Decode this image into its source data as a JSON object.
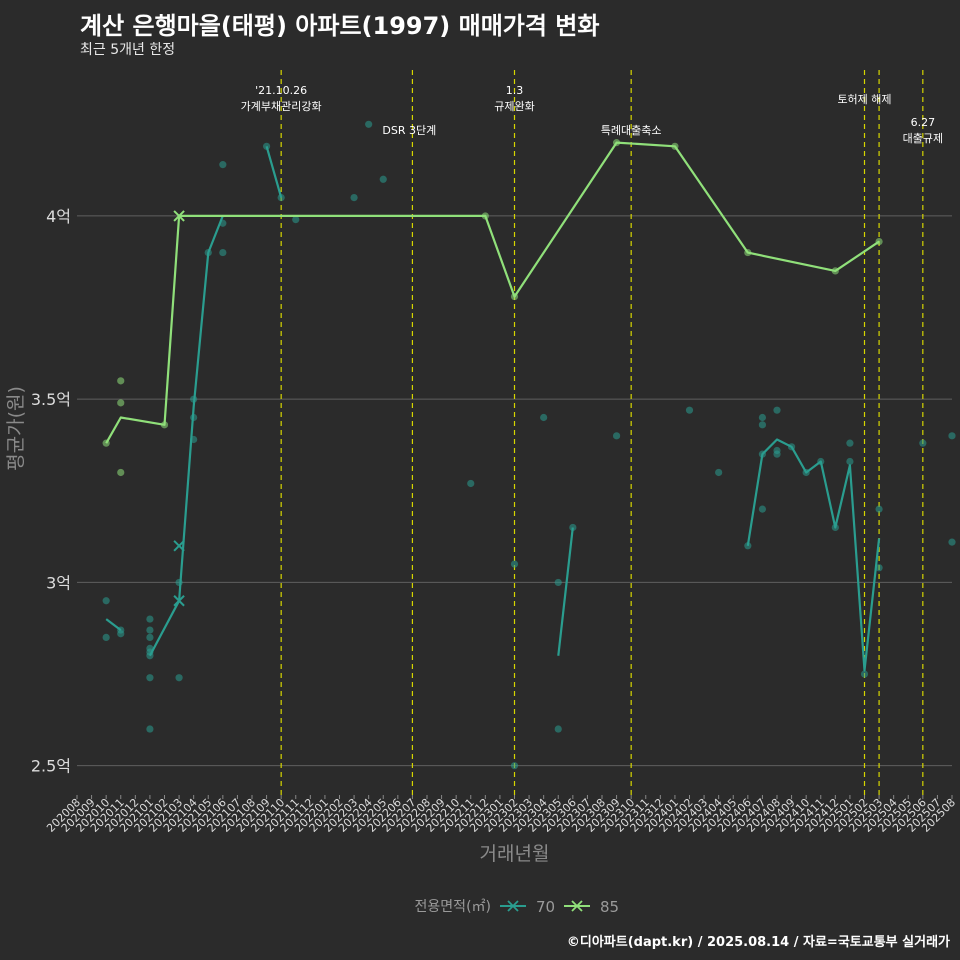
{
  "title": "계산 은행마을(태평) 아파트(1997) 매매가격 변화",
  "subtitle": "최근 5개년 한정",
  "caption": "©디아파트(dapt.kr) / 2025.08.14 / 자료=국토교통부 실거래가",
  "chart_data": {
    "type": "line",
    "xlabel": "거래년월",
    "ylabel": "평균가(원)",
    "x_categories": [
      "202008",
      "202009",
      "202010",
      "202011",
      "202012",
      "202101",
      "202102",
      "202103",
      "202104",
      "202105",
      "202106",
      "202107",
      "202108",
      "202109",
      "202110",
      "202111",
      "202112",
      "202201",
      "202202",
      "202203",
      "202204",
      "202205",
      "202206",
      "202207",
      "202208",
      "202209",
      "202210",
      "202211",
      "202212",
      "202301",
      "202302",
      "202303",
      "202304",
      "202305",
      "202306",
      "202307",
      "202308",
      "202309",
      "202310",
      "202311",
      "202312",
      "202401",
      "202402",
      "202403",
      "202404",
      "202405",
      "202406",
      "202407",
      "202408",
      "202409",
      "202410",
      "202411",
      "202412",
      "202501",
      "202502",
      "202503",
      "202504",
      "202505",
      "202506",
      "202507",
      "202508"
    ],
    "y_ticks": [
      {
        "value": 2.5,
        "label": "2.5억"
      },
      {
        "value": 3.0,
        "label": "3억"
      },
      {
        "value": 3.5,
        "label": "3.5억"
      },
      {
        "value": 4.0,
        "label": "4억"
      }
    ],
    "ylim": [
      2.42,
      4.42
    ],
    "grid": true,
    "legend": {
      "title": "전용면적(㎡)",
      "position": "bottom"
    },
    "series": [
      {
        "name": "70",
        "color": "#2a9d8f",
        "line_segments": [
          [
            [
              "202010",
              2.9
            ],
            [
              "202011",
              2.87
            ]
          ],
          [
            [
              "202101",
              2.8
            ],
            [
              "202103",
              2.95
            ],
            [
              "202104",
              3.48
            ],
            [
              "202105",
              3.9
            ],
            [
              "202106",
              4.0
            ]
          ],
          [
            [
              "202109",
              4.19
            ],
            [
              "202110",
              4.05
            ]
          ],
          [
            [
              "202305",
              2.8
            ],
            [
              "202306",
              3.15
            ]
          ],
          [
            [
              "202406",
              3.1
            ],
            [
              "202407",
              3.35
            ],
            [
              "202408",
              3.39
            ],
            [
              "202409",
              3.37
            ],
            [
              "202410",
              3.3
            ],
            [
              "202411",
              3.33
            ],
            [
              "202412",
              3.15
            ],
            [
              "202501",
              3.32
            ],
            [
              "202502",
              2.76
            ],
            [
              "202503",
              3.12
            ]
          ]
        ],
        "points": [
          [
            "202010",
            2.95
          ],
          [
            "202010",
            2.85
          ],
          [
            "202011",
            2.86
          ],
          [
            "202011",
            2.87
          ],
          [
            "202101",
            2.9
          ],
          [
            "202101",
            2.87
          ],
          [
            "202101",
            2.85
          ],
          [
            "202101",
            2.82
          ],
          [
            "202101",
            2.81
          ],
          [
            "202101",
            2.8
          ],
          [
            "202101",
            2.74
          ],
          [
            "202101",
            2.6
          ],
          [
            "202103",
            3.0
          ],
          [
            "202103",
            2.74
          ],
          [
            "202104",
            3.5
          ],
          [
            "202104",
            3.45
          ],
          [
            "202104",
            3.39
          ],
          [
            "202105",
            3.9
          ],
          [
            "202106",
            4.14
          ],
          [
            "202106",
            3.98
          ],
          [
            "202106",
            3.9
          ],
          [
            "202109",
            4.19
          ],
          [
            "202110",
            4.05
          ],
          [
            "202111",
            3.99
          ],
          [
            "202203",
            4.05
          ],
          [
            "202205",
            4.1
          ],
          [
            "202204",
            4.25
          ],
          [
            "202211",
            3.27
          ],
          [
            "202302",
            3.05
          ],
          [
            "202302",
            2.5
          ],
          [
            "202304",
            3.45
          ],
          [
            "202305",
            3.0
          ],
          [
            "202305",
            2.6
          ],
          [
            "202306",
            3.15
          ],
          [
            "202309",
            3.4
          ],
          [
            "202402",
            3.47
          ],
          [
            "202404",
            3.3
          ],
          [
            "202406",
            3.1
          ],
          [
            "202407",
            3.45
          ],
          [
            "202407",
            3.43
          ],
          [
            "202407",
            3.35
          ],
          [
            "202407",
            3.2
          ],
          [
            "202408",
            3.47
          ],
          [
            "202408",
            3.36
          ],
          [
            "202408",
            3.35
          ],
          [
            "202409",
            3.37
          ],
          [
            "202410",
            3.3
          ],
          [
            "202411",
            3.33
          ],
          [
            "202412",
            3.15
          ],
          [
            "202501",
            3.38
          ],
          [
            "202501",
            3.33
          ],
          [
            "202502",
            2.75
          ],
          [
            "202503",
            3.2
          ],
          [
            "202503",
            3.04
          ],
          [
            "202506",
            3.38
          ],
          [
            "202508",
            3.4
          ],
          [
            "202508",
            3.11
          ]
        ],
        "cross_markers": [
          [
            "202103",
            3.1
          ],
          [
            "202103",
            2.95
          ]
        ]
      },
      {
        "name": "85",
        "color": "#90e07a",
        "line_segments": [
          [
            [
              "202010",
              3.38
            ],
            [
              "202011",
              3.45
            ],
            [
              "202102",
              3.43
            ],
            [
              "202103",
              4.0
            ],
            [
              "202201",
              4.0
            ],
            [
              "202212",
              4.0
            ],
            [
              "202302",
              3.78
            ],
            [
              "202309",
              4.2
            ],
            [
              "202401",
              4.19
            ],
            [
              "202406",
              3.9
            ],
            [
              "202412",
              3.85
            ],
            [
              "202503",
              3.93
            ]
          ]
        ],
        "points": [
          [
            "202010",
            3.38
          ],
          [
            "202011",
            3.55
          ],
          [
            "202011",
            3.49
          ],
          [
            "202011",
            3.3
          ],
          [
            "202102",
            3.43
          ],
          [
            "202212",
            4.0
          ],
          [
            "202302",
            3.78
          ],
          [
            "202309",
            4.2
          ],
          [
            "202401",
            4.19
          ],
          [
            "202406",
            3.9
          ],
          [
            "202412",
            3.85
          ],
          [
            "202503",
            3.93
          ]
        ],
        "cross_markers": [
          [
            "202103",
            4.0
          ]
        ]
      }
    ],
    "annotations": [
      {
        "x": "202110",
        "label": "'21.10.26\n가계부채관리강화"
      },
      {
        "x": "202207",
        "label": "DSR 3단계"
      },
      {
        "x": "202302",
        "label": "1.3\n규제완화"
      },
      {
        "x": "202310",
        "label": "특례대출축소"
      },
      {
        "x": "202502",
        "label": "토허제 해제"
      },
      {
        "x": "202503",
        "label": ""
      },
      {
        "x": "202506",
        "label": "6.27\n대출규제"
      }
    ]
  }
}
